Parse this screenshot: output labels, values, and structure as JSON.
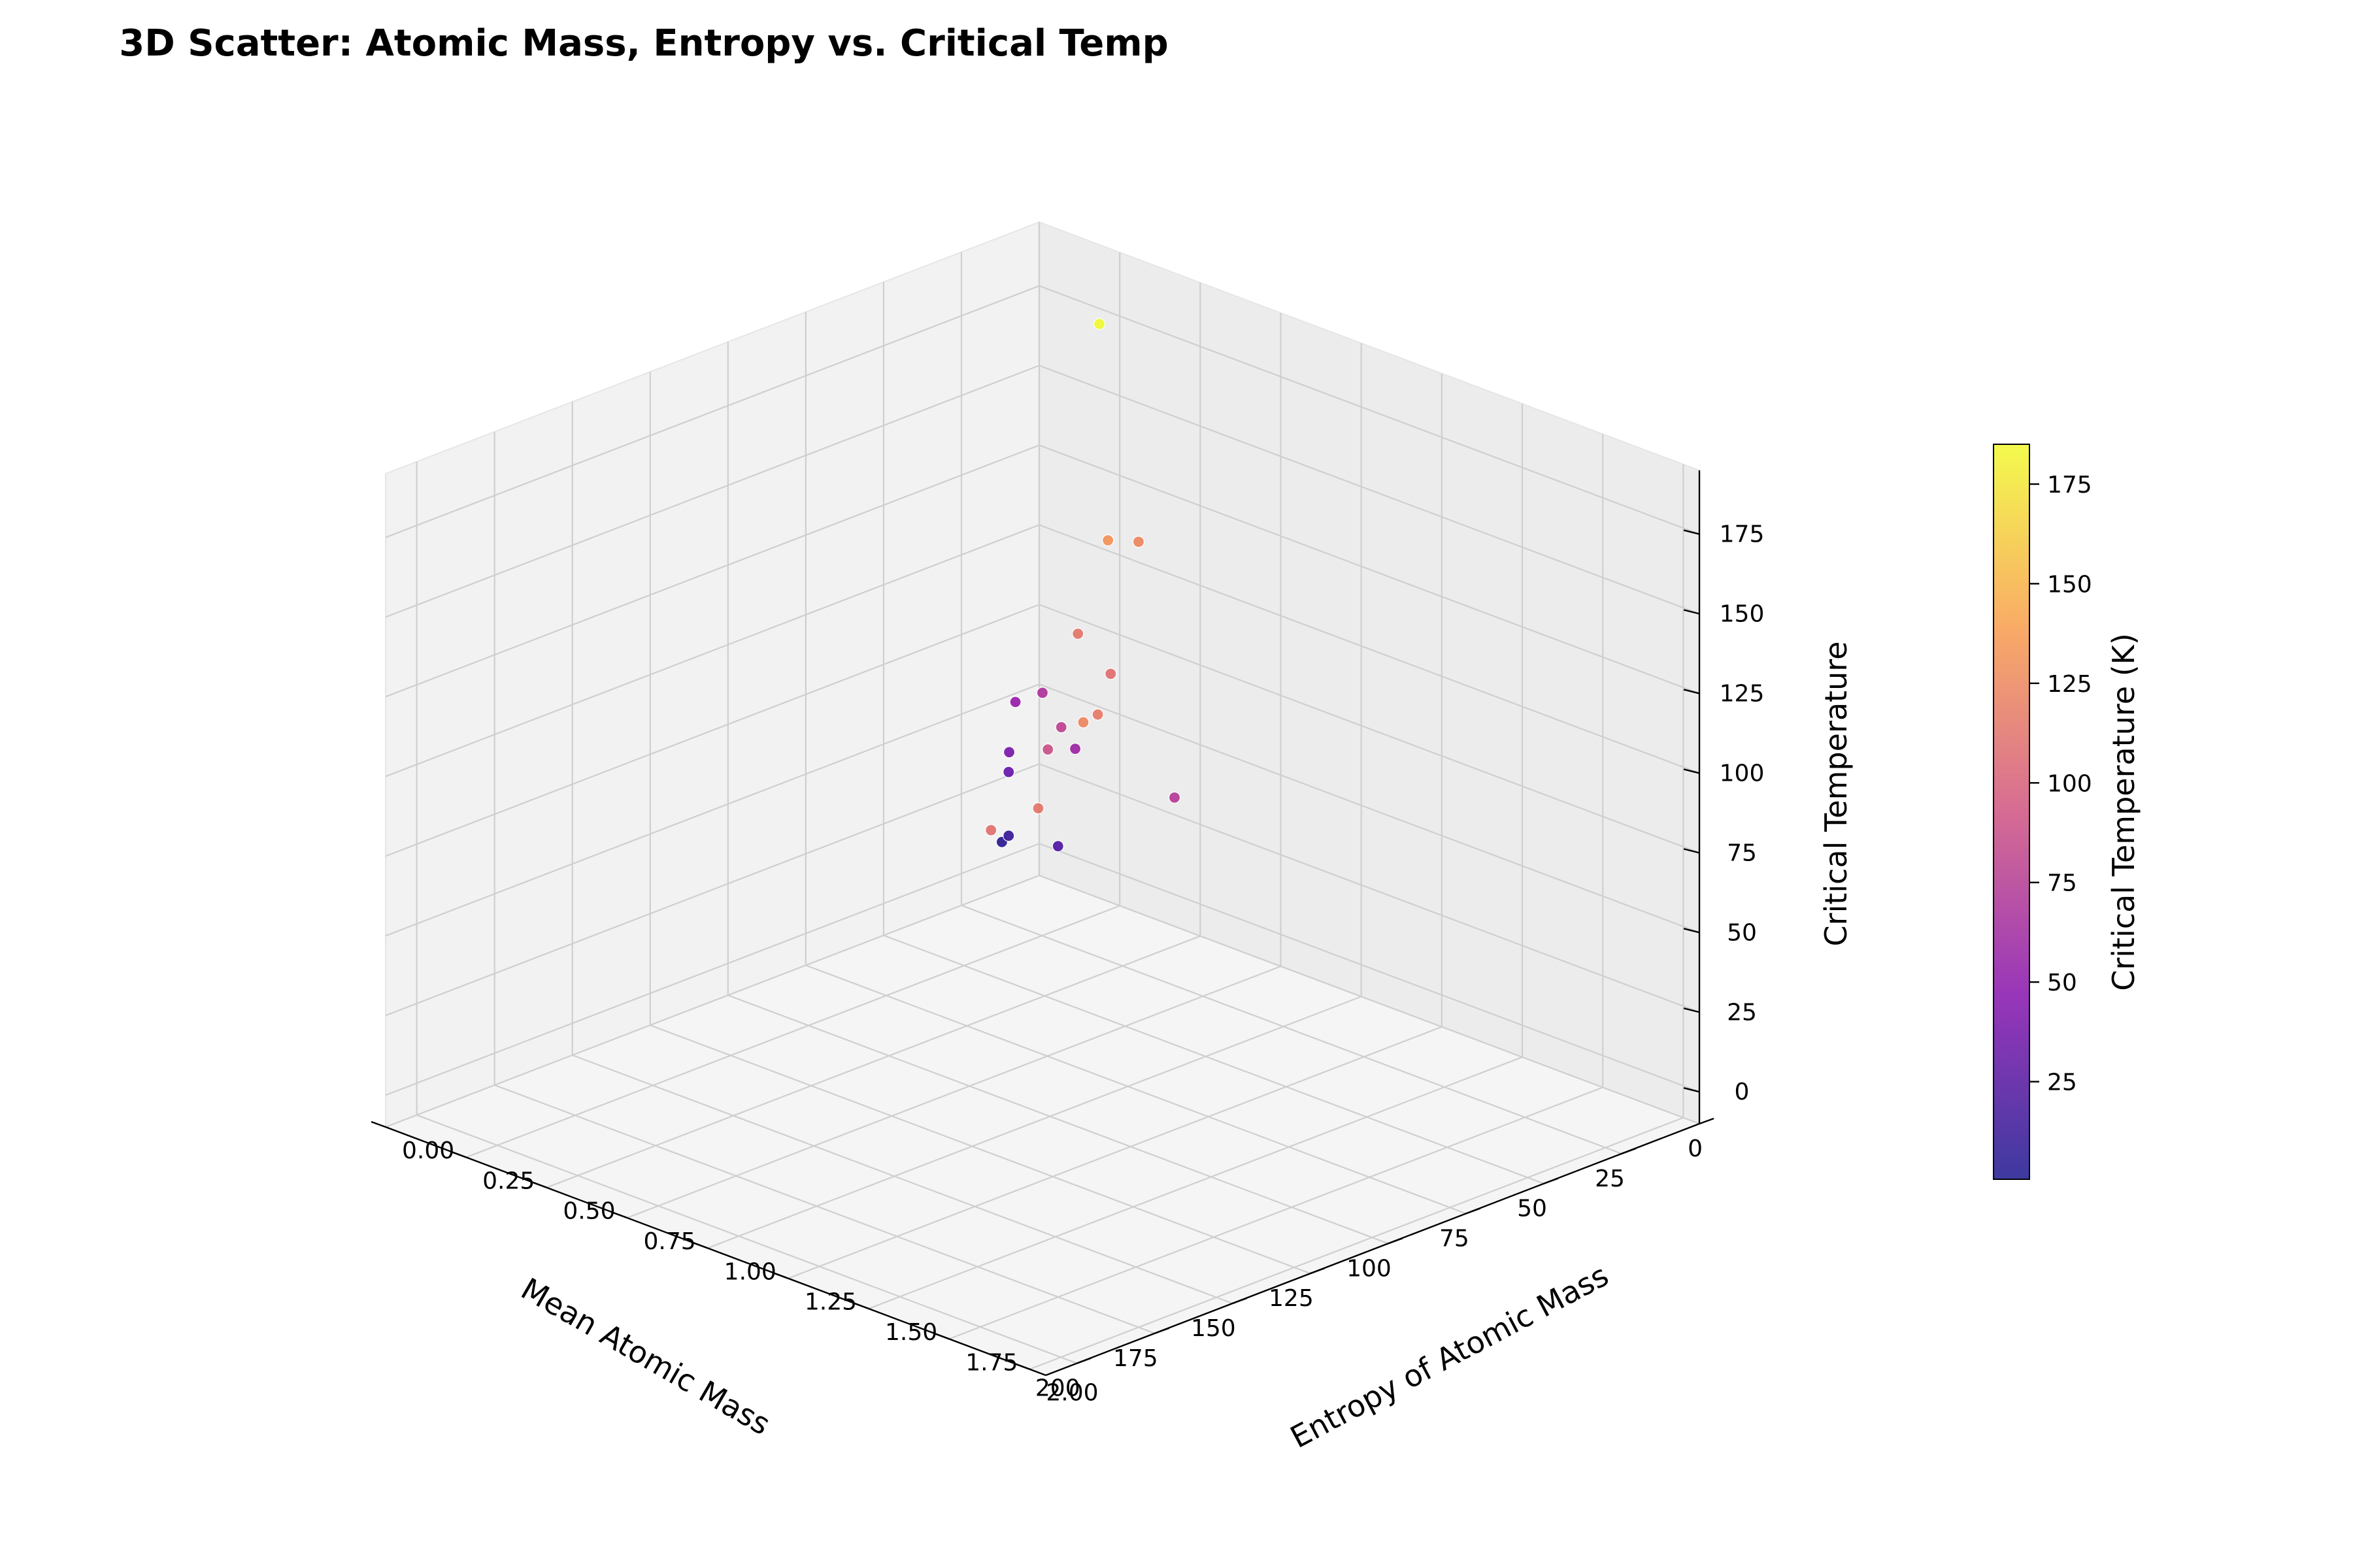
{
  "chart_data": {
    "type": "scatter",
    "projection": "3d",
    "title": "3D Scatter: Atomic Mass, Entropy vs. Critical Temp",
    "xlabel": "Mean Atomic Mass",
    "ylabel": "Entropy of Atomic Mass",
    "zlabel": "Critical Temperature",
    "colorbar_label": "Critical Temperature (K)",
    "colormap": "plasma",
    "grid": true,
    "xlim": [
      0,
      210
    ],
    "ylim": [
      0,
      2.05
    ],
    "zlim": [
      -10,
      195
    ],
    "color_range": [
      0.5,
      185
    ],
    "x_ticks": [
      "200",
      "175",
      "150",
      "125",
      "100",
      "75",
      "50",
      "25",
      "0"
    ],
    "x_tick_values": [
      200,
      175,
      150,
      125,
      100,
      75,
      50,
      25,
      0
    ],
    "y_ticks": [
      "0.00",
      "0.25",
      "0.50",
      "0.75",
      "1.00",
      "1.25",
      "1.50",
      "1.75",
      "2.00"
    ],
    "y_tick_values": [
      0,
      0.25,
      0.5,
      0.75,
      1.0,
      1.25,
      1.5,
      1.75,
      2.0
    ],
    "z_ticks": [
      "0",
      "25",
      "50",
      "75",
      "100",
      "125",
      "150",
      "175"
    ],
    "z_tick_values": [
      0,
      25,
      50,
      75,
      100,
      125,
      150,
      175
    ],
    "colorbar_ticks": [
      "25",
      "50",
      "75",
      "100",
      "125",
      "150",
      "175"
    ],
    "colorbar_tick_values": [
      25,
      50,
      75,
      100,
      125,
      150,
      175
    ],
    "points": [
      {
        "x": 20,
        "y": 0.38,
        "z": 185
      },
      {
        "x": 40,
        "y": 0.6,
        "z": 133
      },
      {
        "x": 25,
        "y": 0.55,
        "z": 125
      },
      {
        "x": 60,
        "y": 0.7,
        "z": 115
      },
      {
        "x": 65,
        "y": 0.85,
        "z": 110
      },
      {
        "x": 150,
        "y": 1.3,
        "z": 110
      },
      {
        "x": 140,
        "y": 1.35,
        "z": 115
      },
      {
        "x": 95,
        "y": 1.1,
        "z": 118
      },
      {
        "x": 110,
        "y": 1.2,
        "z": 125
      },
      {
        "x": 30,
        "y": 0.3,
        "z": 70
      },
      {
        "x": 55,
        "y": 0.6,
        "z": 80
      },
      {
        "x": 35,
        "y": 0.45,
        "z": 60
      },
      {
        "x": 80,
        "y": 0.8,
        "z": 90
      },
      {
        "x": 60,
        "y": 1.0,
        "z": 75
      },
      {
        "x": 20,
        "y": 0.1,
        "z": 40
      },
      {
        "x": 15,
        "y": 0.05,
        "z": 30
      },
      {
        "x": 15,
        "y": 0.05,
        "z": 10
      },
      {
        "x": 12,
        "y": 0.0,
        "z": 5
      },
      {
        "x": 18,
        "y": 0.1,
        "z": 55
      },
      {
        "x": 25,
        "y": 0.3,
        "z": 20
      }
    ]
  }
}
